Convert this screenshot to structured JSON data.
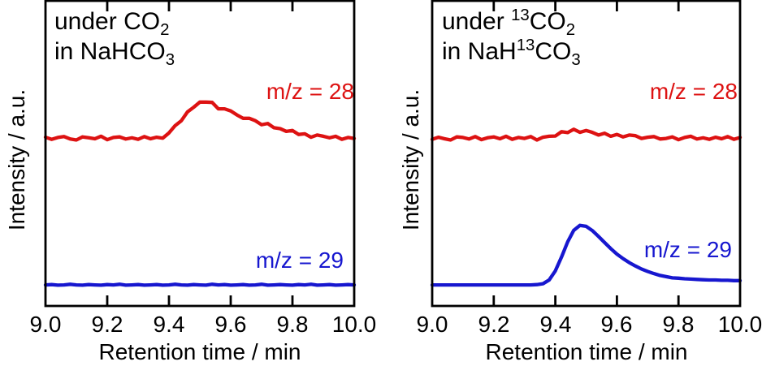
{
  "figure": {
    "background": "#ffffff",
    "frame_color": "#000000",
    "text_color": "#000000"
  },
  "chart_data": [
    {
      "type": "line",
      "panel": "left",
      "annotation_lines": [
        [
          {
            "t": "under CO"
          },
          {
            "t": "2",
            "style": "sub"
          }
        ],
        [
          {
            "t": "in NaHCO"
          },
          {
            "t": "3",
            "style": "sub"
          }
        ]
      ],
      "xlabel": "Retention time / min",
      "ylabel": "Intensity / a.u.",
      "xlim": [
        9.0,
        10.0
      ],
      "ylim": [
        0,
        1
      ],
      "x_ticks": [
        9.0,
        9.2,
        9.4,
        9.6,
        9.8,
        10.0
      ],
      "x_tick_labels": [
        "9.0",
        "9.2",
        "9.4",
        "9.6",
        "9.8",
        "10.0"
      ],
      "y_ticks": [],
      "grid": "off",
      "x": [
        9.0,
        9.02,
        9.04,
        9.06,
        9.08,
        9.1,
        9.12,
        9.14,
        9.16,
        9.18,
        9.2,
        9.22,
        9.24,
        9.26,
        9.28,
        9.3,
        9.32,
        9.34,
        9.36,
        9.38,
        9.4,
        9.42,
        9.44,
        9.46,
        9.48,
        9.5,
        9.52,
        9.54,
        9.56,
        9.58,
        9.6,
        9.62,
        9.64,
        9.66,
        9.68,
        9.7,
        9.72,
        9.74,
        9.76,
        9.78,
        9.8,
        9.82,
        9.84,
        9.86,
        9.88,
        9.9,
        9.92,
        9.94,
        9.96,
        9.98,
        10.0
      ],
      "series": [
        {
          "name": "m/z = 28",
          "color": "#dd1212",
          "peak_retention_min": 9.51,
          "values": [
            0.553,
            0.546,
            0.552,
            0.555,
            0.547,
            0.544,
            0.554,
            0.551,
            0.548,
            0.556,
            0.545,
            0.552,
            0.554,
            0.547,
            0.551,
            0.546,
            0.555,
            0.548,
            0.553,
            0.55,
            0.567,
            0.591,
            0.607,
            0.636,
            0.651,
            0.668,
            0.668,
            0.667,
            0.646,
            0.646,
            0.639,
            0.626,
            0.615,
            0.615,
            0.607,
            0.594,
            0.598,
            0.584,
            0.581,
            0.572,
            0.575,
            0.562,
            0.564,
            0.553,
            0.56,
            0.556,
            0.551,
            0.556,
            0.546,
            0.552,
            0.549
          ]
        },
        {
          "name": "m/z = 29",
          "color": "#1717cf",
          "peak_retention_min": null,
          "values": [
            0.069,
            0.07,
            0.068,
            0.069,
            0.071,
            0.069,
            0.068,
            0.07,
            0.069,
            0.068,
            0.07,
            0.069,
            0.071,
            0.068,
            0.069,
            0.07,
            0.068,
            0.069,
            0.07,
            0.068,
            0.069,
            0.071,
            0.069,
            0.068,
            0.07,
            0.069,
            0.068,
            0.071,
            0.069,
            0.07,
            0.068,
            0.069,
            0.07,
            0.068,
            0.069,
            0.071,
            0.068,
            0.069,
            0.07,
            0.069,
            0.068,
            0.07,
            0.069,
            0.071,
            0.068,
            0.069,
            0.07,
            0.068,
            0.069,
            0.07,
            0.069
          ]
        }
      ]
    },
    {
      "type": "line",
      "panel": "right",
      "annotation_lines": [
        [
          {
            "t": "under "
          },
          {
            "t": "13",
            "style": "sup"
          },
          {
            "t": "CO"
          },
          {
            "t": "2",
            "style": "sub"
          }
        ],
        [
          {
            "t": "in NaH"
          },
          {
            "t": "13",
            "style": "sup"
          },
          {
            "t": "CO"
          },
          {
            "t": "3",
            "style": "sub"
          }
        ]
      ],
      "xlabel": "Retention time / min",
      "ylabel": "Intensity / a.u.",
      "xlim": [
        9.0,
        10.0
      ],
      "ylim": [
        0,
        1
      ],
      "x_ticks": [
        9.0,
        9.2,
        9.4,
        9.6,
        9.8,
        10.0
      ],
      "x_tick_labels": [
        "9.0",
        "9.2",
        "9.4",
        "9.6",
        "9.8",
        "10.0"
      ],
      "y_ticks": [],
      "grid": "off",
      "x": [
        9.0,
        9.02,
        9.04,
        9.06,
        9.08,
        9.1,
        9.12,
        9.14,
        9.16,
        9.18,
        9.2,
        9.22,
        9.24,
        9.26,
        9.28,
        9.3,
        9.32,
        9.34,
        9.36,
        9.38,
        9.4,
        9.42,
        9.44,
        9.46,
        9.48,
        9.5,
        9.52,
        9.54,
        9.56,
        9.58,
        9.6,
        9.62,
        9.64,
        9.66,
        9.68,
        9.7,
        9.72,
        9.74,
        9.76,
        9.78,
        9.8,
        9.82,
        9.84,
        9.86,
        9.88,
        9.9,
        9.92,
        9.94,
        9.96,
        9.98,
        10.0
      ],
      "series": [
        {
          "name": "m/z = 28",
          "color": "#dd1212",
          "peak_retention_min": null,
          "values": [
            0.546,
            0.553,
            0.548,
            0.544,
            0.554,
            0.552,
            0.547,
            0.555,
            0.545,
            0.551,
            0.554,
            0.548,
            0.556,
            0.546,
            0.552,
            0.549,
            0.555,
            0.544,
            0.553,
            0.556,
            0.557,
            0.571,
            0.568,
            0.579,
            0.569,
            0.575,
            0.569,
            0.56,
            0.566,
            0.556,
            0.562,
            0.554,
            0.56,
            0.558,
            0.549,
            0.553,
            0.555,
            0.547,
            0.549,
            0.554,
            0.545,
            0.552,
            0.556,
            0.547,
            0.551,
            0.546,
            0.553,
            0.548,
            0.555,
            0.546,
            0.552
          ]
        },
        {
          "name": "m/z = 29",
          "color": "#1717cf",
          "peak_retention_min": 9.48,
          "values": [
            0.069,
            0.069,
            0.069,
            0.069,
            0.069,
            0.069,
            0.069,
            0.069,
            0.069,
            0.069,
            0.069,
            0.069,
            0.069,
            0.069,
            0.069,
            0.069,
            0.069,
            0.07,
            0.073,
            0.085,
            0.115,
            0.16,
            0.21,
            0.248,
            0.264,
            0.261,
            0.247,
            0.228,
            0.208,
            0.188,
            0.17,
            0.155,
            0.142,
            0.131,
            0.121,
            0.113,
            0.106,
            0.1,
            0.096,
            0.092,
            0.091,
            0.089,
            0.088,
            0.087,
            0.086,
            0.085,
            0.085,
            0.084,
            0.084,
            0.083,
            0.083
          ]
        }
      ]
    }
  ]
}
